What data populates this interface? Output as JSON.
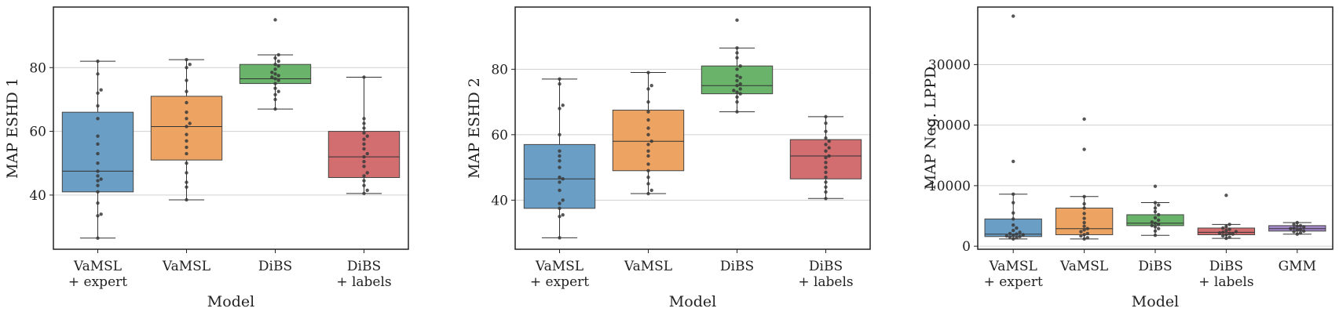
{
  "chart_data": [
    {
      "type": "box",
      "title": "",
      "xlabel": "Model",
      "ylabel": "MAP ESHD 1",
      "ylim": [
        23,
        99
      ],
      "yticks": [
        40,
        60,
        80
      ],
      "grid": true,
      "categories": [
        "VaMSL\n+ expert",
        "VaMSL",
        "DiBS",
        "DiBS\n+ labels"
      ],
      "colors": [
        "#6a9ec4",
        "#eda463",
        "#6ab36a",
        "#d26e70"
      ],
      "boxes": [
        {
          "whislo": 26.5,
          "q1": 41,
          "med": 47.5,
          "q3": 66,
          "whishi": 82,
          "fliers": []
        },
        {
          "whislo": 38.5,
          "q1": 51,
          "med": 61.5,
          "q3": 71,
          "whishi": 82.5,
          "fliers": []
        },
        {
          "whislo": 67,
          "q1": 75,
          "med": 76.5,
          "q3": 81,
          "whishi": 84,
          "fliers": [
            95
          ]
        },
        {
          "whislo": 40.5,
          "q1": 45.5,
          "med": 52,
          "q3": 60,
          "whishi": 77,
          "fliers": []
        }
      ],
      "points": [
        [
          26.5,
          33.5,
          34,
          37.5,
          41,
          43,
          44.5,
          45,
          46,
          47.5,
          50,
          53,
          56,
          58.5,
          64,
          68,
          72,
          73,
          78,
          82
        ],
        [
          38.5,
          42.5,
          44,
          47,
          50,
          53,
          55,
          57,
          59,
          61.5,
          62.5,
          64,
          66,
          69,
          72.5,
          76,
          80,
          81,
          82.5
        ],
        [
          67,
          70,
          71.5,
          72.5,
          73.5,
          75,
          76,
          76.5,
          77,
          77.5,
          78,
          78.5,
          79.5,
          80.5,
          81,
          82,
          83,
          84,
          95
        ],
        [
          40.5,
          41.5,
          43,
          44.5,
          46,
          47,
          49,
          50.5,
          52,
          53,
          54.5,
          56,
          57.5,
          58.5,
          59.5,
          61,
          62.5,
          64,
          77
        ]
      ]
    },
    {
      "type": "box",
      "title": "",
      "xlabel": "Model",
      "ylabel": "MAP ESHD 2",
      "ylim": [
        25,
        99
      ],
      "yticks": [
        40,
        60,
        80
      ],
      "grid": true,
      "categories": [
        "VaMSL\n+ expert",
        "VaMSL",
        "DiBS",
        "DiBS\n+ labels"
      ],
      "colors": [
        "#6a9ec4",
        "#eda463",
        "#6ab36a",
        "#d26e70"
      ],
      "boxes": [
        {
          "whislo": 28.5,
          "q1": 37.5,
          "med": 46.5,
          "q3": 57,
          "whishi": 77,
          "fliers": []
        },
        {
          "whislo": 42,
          "q1": 49,
          "med": 58,
          "q3": 67.5,
          "whishi": 79,
          "fliers": []
        },
        {
          "whislo": 67,
          "q1": 72.5,
          "med": 75,
          "q3": 81,
          "whishi": 86.5,
          "fliers": [
            95
          ]
        },
        {
          "whislo": 40.5,
          "q1": 46.5,
          "med": 53.5,
          "q3": 58.5,
          "whishi": 65.5,
          "fliers": []
        }
      ],
      "points": [
        [
          28.5,
          35,
          35.5,
          37.5,
          39,
          40,
          43,
          45.5,
          46.5,
          47,
          50,
          52,
          53.5,
          55,
          60,
          68,
          69,
          75.5,
          77
        ],
        [
          42,
          43,
          45,
          47,
          49,
          51,
          53.5,
          55,
          57,
          58,
          60,
          62,
          64.5,
          67,
          70,
          74,
          75,
          79
        ],
        [
          67,
          70,
          71.5,
          72.5,
          73,
          73.5,
          74,
          75,
          75.5,
          76.5,
          77.5,
          78,
          80,
          81,
          83.5,
          85,
          86.5,
          95
        ],
        [
          40.5,
          42.5,
          44,
          45.5,
          47,
          48.5,
          50,
          51.5,
          53,
          53.5,
          55,
          56,
          57,
          58,
          59,
          61,
          63.5,
          65.5
        ]
      ]
    },
    {
      "type": "box",
      "title": "",
      "xlabel": "Model",
      "ylabel": "MAP Neg. LPPD",
      "ylim": [
        -500,
        39500
      ],
      "yticks": [
        0,
        10000,
        20000,
        30000
      ],
      "grid": true,
      "categories": [
        "VaMSL\n+ expert",
        "VaMSL",
        "DiBS",
        "DiBS\n+ labels",
        "GMM"
      ],
      "colors": [
        "#6a9ec4",
        "#eda463",
        "#6ab36a",
        "#d26e70",
        "#a487c9"
      ],
      "boxes": [
        {
          "whislo": 1200,
          "q1": 1600,
          "med": 2000,
          "q3": 4500,
          "whishi": 8600,
          "fliers": [
            14000,
            38000
          ]
        },
        {
          "whislo": 1200,
          "q1": 1900,
          "med": 2900,
          "q3": 6300,
          "whishi": 8200,
          "fliers": [
            16000,
            21000
          ]
        },
        {
          "whislo": 1800,
          "q1": 3400,
          "med": 3800,
          "q3": 5200,
          "whishi": 7200,
          "fliers": [
            9900
          ]
        },
        {
          "whislo": 1300,
          "q1": 1900,
          "med": 2300,
          "q3": 3000,
          "whishi": 3600,
          "fliers": [
            8400
          ]
        },
        {
          "whislo": 2000,
          "q1": 2500,
          "med": 2900,
          "q3": 3400,
          "whishi": 3900,
          "fliers": []
        }
      ],
      "points": [
        [
          1200,
          1400,
          1500,
          1600,
          1700,
          1800,
          1900,
          2000,
          2100,
          2300,
          2600,
          3000,
          3500,
          4500,
          5500,
          7200,
          8600,
          14000,
          38000
        ],
        [
          1200,
          1400,
          1700,
          1900,
          2100,
          2400,
          2700,
          2900,
          3300,
          3900,
          4600,
          5400,
          6300,
          7000,
          8200,
          16000,
          21000
        ],
        [
          1800,
          2500,
          2900,
          3200,
          3400,
          3600,
          3800,
          4000,
          4300,
          4700,
          5200,
          5700,
          6300,
          6800,
          7200,
          9900
        ],
        [
          1300,
          1500,
          1700,
          1900,
          2000,
          2100,
          2200,
          2300,
          2400,
          2600,
          2800,
          3000,
          3300,
          3600,
          8400
        ],
        [
          2000,
          2200,
          2400,
          2500,
          2700,
          2800,
          2900,
          3000,
          3200,
          3300,
          3400,
          3600,
          3900
        ]
      ]
    }
  ]
}
